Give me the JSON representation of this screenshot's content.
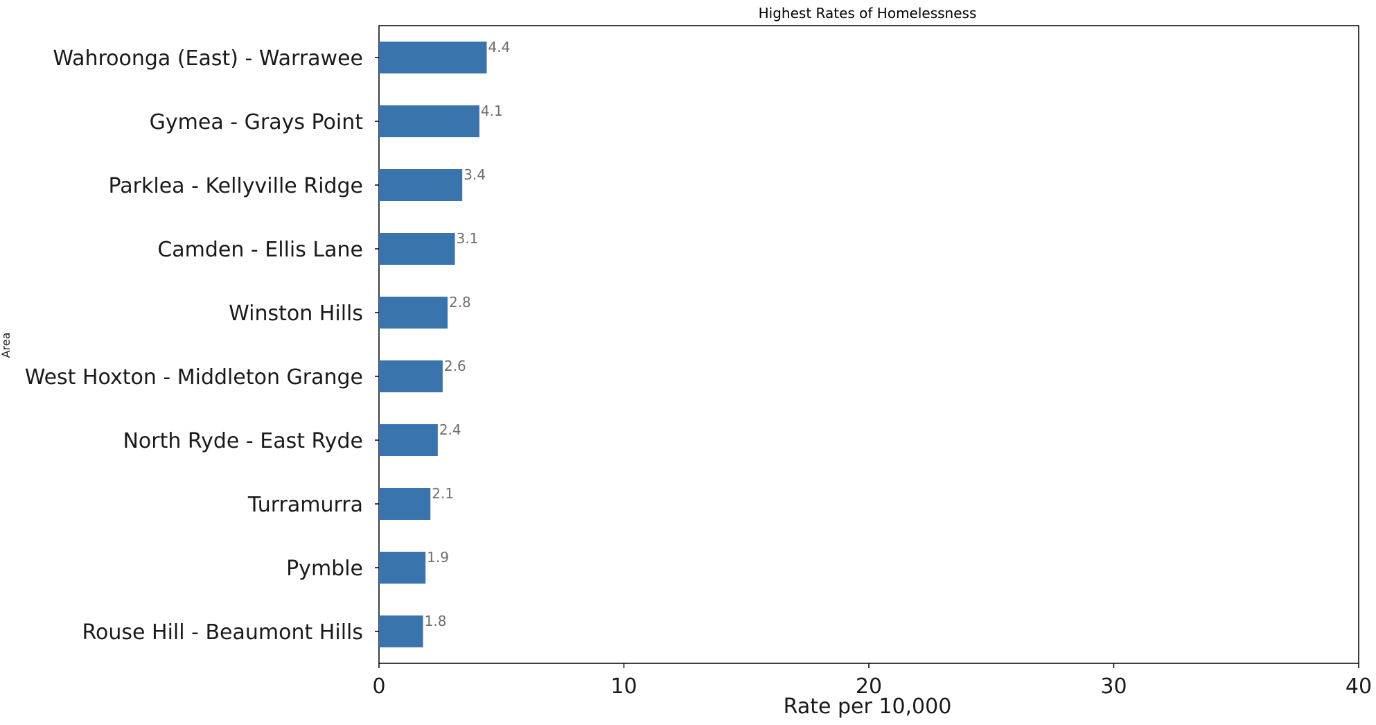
{
  "chart_data": {
    "type": "bar",
    "orientation": "horizontal",
    "title": "Highest Rates of Homelessness",
    "xlabel": "Rate per 10,000",
    "ylabel": "Area",
    "categories": [
      "Wahroonga (East) - Warrawee",
      "Gymea - Grays Point",
      "Parklea - Kellyville Ridge",
      "Camden - Ellis Lane",
      "Winston Hills",
      "West Hoxton - Middleton Grange",
      "North Ryde - East Ryde",
      "Turramurra",
      "Pymble",
      "Rouse Hill - Beaumont Hills"
    ],
    "values": [
      4.4,
      4.1,
      3.4,
      3.1,
      2.8,
      2.6,
      2.4,
      2.1,
      1.9,
      1.8
    ],
    "data_labels": [
      "4.4",
      "4.1",
      "3.4",
      "3.1",
      "2.8",
      "2.6",
      "2.4",
      "2.1",
      "1.9",
      "1.8"
    ],
    "xlim": [
      0,
      40
    ],
    "xticks": [
      0,
      10,
      20,
      30,
      40
    ],
    "xtick_labels": [
      "0",
      "10",
      "20",
      "30",
      "40"
    ],
    "grid": false,
    "legend": "none",
    "bar_color": "#3a74ad",
    "data_label_color": "#6e6e6e"
  }
}
